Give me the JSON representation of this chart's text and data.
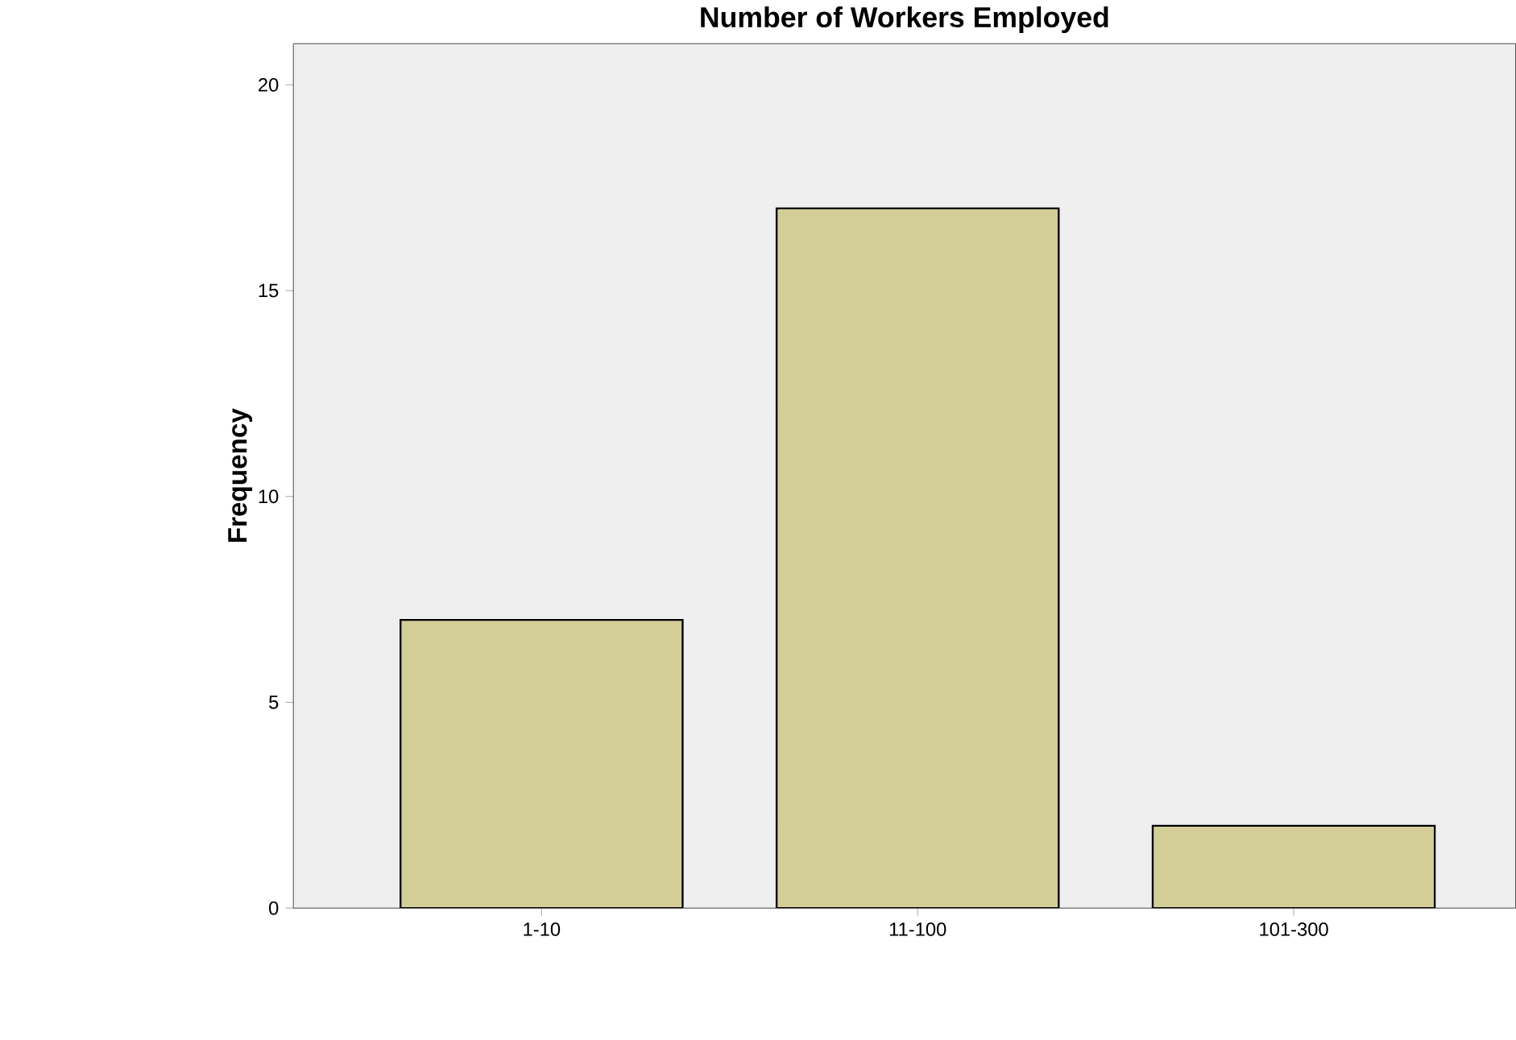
{
  "chart_data": {
    "type": "bar",
    "title": "Number of Workers Employed",
    "ylabel": "Frequency",
    "categories": [
      "1-10",
      "11-100",
      "101-300"
    ],
    "values": [
      7,
      17,
      2
    ],
    "color": "#d3ce98",
    "ylim": [
      0,
      21
    ],
    "yticks": [
      0,
      5,
      10,
      15,
      20
    ],
    "grid": false
  }
}
